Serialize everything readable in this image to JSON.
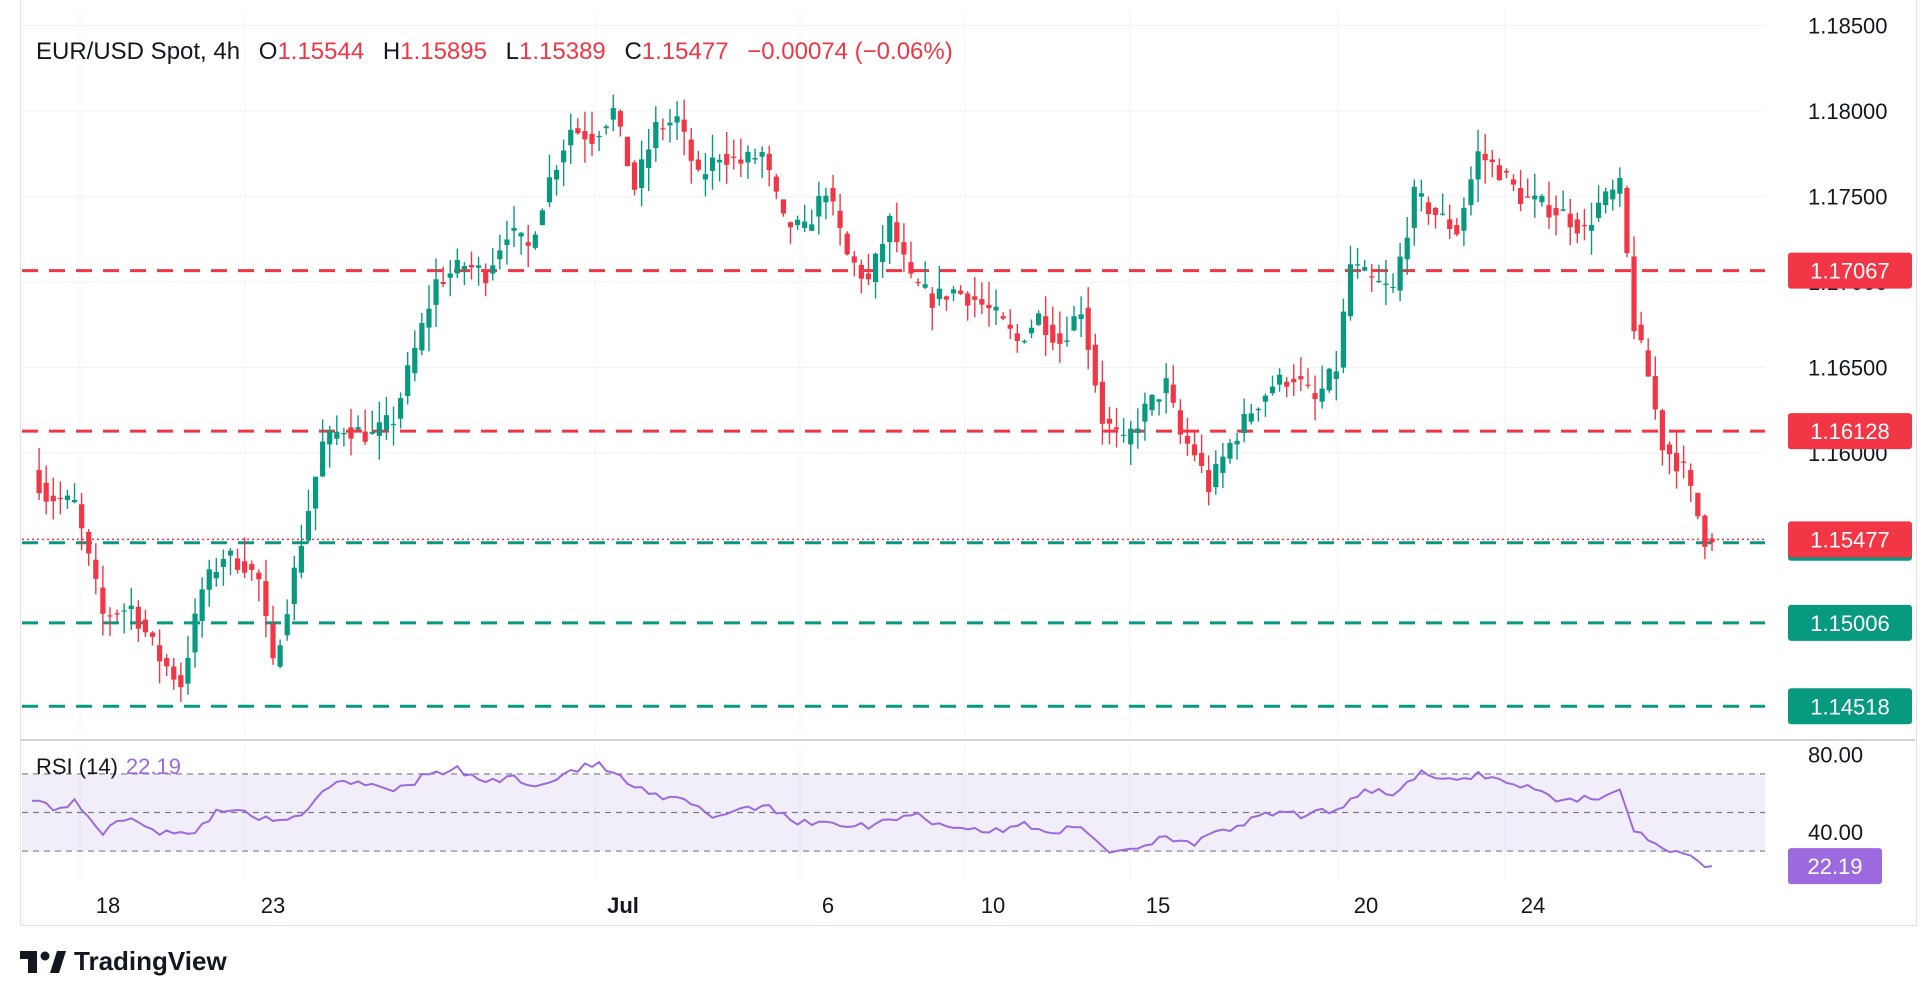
{
  "header": {
    "symbol": "EUR/USD Spot, 4h",
    "open_label": "O",
    "open": "1.15544",
    "high_label": "H",
    "high": "1.15895",
    "low_label": "L",
    "low": "1.15389",
    "close_label": "C",
    "close": "1.15477",
    "change": "−0.00074 (−0.06%)"
  },
  "rsi_legend": {
    "label": "RSI (14)",
    "value": "22.19"
  },
  "footer": {
    "brand": "TradingView",
    "logo_icon": "tradingview-logo-icon"
  },
  "colors": {
    "up": "#089981",
    "down": "#f23645",
    "rsi": "#9c6ade",
    "resistance": "#f23645",
    "support": "#089981"
  },
  "chart_data": [
    {
      "type": "candlestick",
      "x_tick_labels": [
        "18",
        "23",
        "Jul",
        "6",
        "10",
        "15",
        "20",
        "24"
      ],
      "y_tick_labels": [
        "1.18500",
        "1.18000",
        "1.17500",
        "1.17000",
        "1.16500",
        "1.16000"
      ],
      "ylim": [
        1.1435,
        1.1865
      ],
      "horizontal_levels": [
        {
          "value": 1.17067,
          "label": "1.17067",
          "kind": "resistance"
        },
        {
          "value": 1.16128,
          "label": "1.16128",
          "kind": "resistance"
        },
        {
          "value": 1.15475,
          "label": "1.15475",
          "kind": "support"
        },
        {
          "value": 1.15006,
          "label": "1.15006",
          "kind": "support"
        },
        {
          "value": 1.14518,
          "label": "1.14518",
          "kind": "support"
        }
      ],
      "last_price": {
        "value": 1.15477,
        "label": "1.15477"
      },
      "anchors": [
        {
          "i": 0,
          "p": 1.159
        },
        {
          "i": 2,
          "p": 1.1575
        },
        {
          "i": 6,
          "p": 1.157
        },
        {
          "i": 10,
          "p": 1.1505
        },
        {
          "i": 14,
          "p": 1.151
        },
        {
          "i": 18,
          "p": 1.148
        },
        {
          "i": 21,
          "p": 1.1465
        },
        {
          "i": 24,
          "p": 1.152
        },
        {
          "i": 27,
          "p": 1.154
        },
        {
          "i": 30,
          "p": 1.1535
        },
        {
          "i": 32,
          "p": 1.1525
        },
        {
          "i": 34,
          "p": 1.1475
        },
        {
          "i": 37,
          "p": 1.153
        },
        {
          "i": 41,
          "p": 1.1605
        },
        {
          "i": 44,
          "p": 1.1615
        },
        {
          "i": 48,
          "p": 1.161
        },
        {
          "i": 51,
          "p": 1.162
        },
        {
          "i": 54,
          "p": 1.166
        },
        {
          "i": 57,
          "p": 1.17
        },
        {
          "i": 61,
          "p": 1.171
        },
        {
          "i": 64,
          "p": 1.1705
        },
        {
          "i": 67,
          "p": 1.173
        },
        {
          "i": 70,
          "p": 1.172
        },
        {
          "i": 73,
          "p": 1.176
        },
        {
          "i": 76,
          "p": 1.179
        },
        {
          "i": 79,
          "p": 1.1785
        },
        {
          "i": 82,
          "p": 1.18
        },
        {
          "i": 85,
          "p": 1.1755
        },
        {
          "i": 88,
          "p": 1.179
        },
        {
          "i": 91,
          "p": 1.1795
        },
        {
          "i": 94,
          "p": 1.176
        },
        {
          "i": 97,
          "p": 1.1775
        },
        {
          "i": 100,
          "p": 1.177
        },
        {
          "i": 103,
          "p": 1.1775
        },
        {
          "i": 106,
          "p": 1.1735
        },
        {
          "i": 109,
          "p": 1.173
        },
        {
          "i": 112,
          "p": 1.1755
        },
        {
          "i": 115,
          "p": 1.1715
        },
        {
          "i": 118,
          "p": 1.17
        },
        {
          "i": 121,
          "p": 1.1735
        },
        {
          "i": 124,
          "p": 1.17
        },
        {
          "i": 127,
          "p": 1.169
        },
        {
          "i": 130,
          "p": 1.1695
        },
        {
          "i": 133,
          "p": 1.169
        },
        {
          "i": 136,
          "p": 1.168
        },
        {
          "i": 139,
          "p": 1.1665
        },
        {
          "i": 142,
          "p": 1.168
        },
        {
          "i": 145,
          "p": 1.1665
        },
        {
          "i": 148,
          "p": 1.1685
        },
        {
          "i": 151,
          "p": 1.162
        },
        {
          "i": 154,
          "p": 1.1605
        },
        {
          "i": 157,
          "p": 1.1625
        },
        {
          "i": 160,
          "p": 1.164
        },
        {
          "i": 162,
          "p": 1.161
        },
        {
          "i": 164,
          "p": 1.16
        },
        {
          "i": 166,
          "p": 1.158
        },
        {
          "i": 169,
          "p": 1.1605
        },
        {
          "i": 172,
          "p": 1.1625
        },
        {
          "i": 175,
          "p": 1.164
        },
        {
          "i": 178,
          "p": 1.1645
        },
        {
          "i": 181,
          "p": 1.163
        },
        {
          "i": 184,
          "p": 1.165
        },
        {
          "i": 186,
          "p": 1.171
        },
        {
          "i": 189,
          "p": 1.17
        },
        {
          "i": 192,
          "p": 1.1695
        },
        {
          "i": 195,
          "p": 1.175
        },
        {
          "i": 198,
          "p": 1.174
        },
        {
          "i": 201,
          "p": 1.173
        },
        {
          "i": 204,
          "p": 1.1775
        },
        {
          "i": 207,
          "p": 1.1765
        },
        {
          "i": 210,
          "p": 1.175
        },
        {
          "i": 213,
          "p": 1.1745
        },
        {
          "i": 216,
          "p": 1.174
        },
        {
          "i": 219,
          "p": 1.173
        },
        {
          "i": 221,
          "p": 1.1745
        },
        {
          "i": 224,
          "p": 1.1755
        },
        {
          "i": 226,
          "p": 1.1675
        },
        {
          "i": 228,
          "p": 1.1645
        },
        {
          "i": 230,
          "p": 1.1605
        },
        {
          "i": 233,
          "p": 1.159
        },
        {
          "i": 236,
          "p": 1.155
        },
        {
          "i": 237,
          "p": 1.15477
        }
      ],
      "x_range": [
        0,
        237
      ]
    },
    {
      "type": "line",
      "name": "RSI (14)",
      "ylim": [
        15,
        85
      ],
      "y_tick_labels": [
        "80.00",
        "40.00"
      ],
      "bands": [
        70,
        50,
        30
      ],
      "last_value": {
        "value": 22.19,
        "label": "22.19"
      },
      "anchors": [
        {
          "i": 0,
          "v": 58
        },
        {
          "i": 3,
          "v": 52
        },
        {
          "i": 6,
          "v": 55
        },
        {
          "i": 10,
          "v": 40
        },
        {
          "i": 14,
          "v": 48
        },
        {
          "i": 18,
          "v": 40
        },
        {
          "i": 22,
          "v": 38
        },
        {
          "i": 26,
          "v": 50
        },
        {
          "i": 30,
          "v": 52
        },
        {
          "i": 34,
          "v": 44
        },
        {
          "i": 38,
          "v": 48
        },
        {
          "i": 41,
          "v": 62
        },
        {
          "i": 44,
          "v": 67
        },
        {
          "i": 48,
          "v": 65
        },
        {
          "i": 52,
          "v": 62
        },
        {
          "i": 56,
          "v": 70
        },
        {
          "i": 60,
          "v": 72
        },
        {
          "i": 64,
          "v": 66
        },
        {
          "i": 68,
          "v": 68
        },
        {
          "i": 72,
          "v": 64
        },
        {
          "i": 76,
          "v": 72
        },
        {
          "i": 80,
          "v": 75
        },
        {
          "i": 84,
          "v": 65
        },
        {
          "i": 88,
          "v": 58
        },
        {
          "i": 92,
          "v": 56
        },
        {
          "i": 96,
          "v": 48
        },
        {
          "i": 100,
          "v": 52
        },
        {
          "i": 104,
          "v": 54
        },
        {
          "i": 108,
          "v": 44
        },
        {
          "i": 112,
          "v": 46
        },
        {
          "i": 116,
          "v": 42
        },
        {
          "i": 120,
          "v": 45
        },
        {
          "i": 124,
          "v": 50
        },
        {
          "i": 128,
          "v": 44
        },
        {
          "i": 132,
          "v": 42
        },
        {
          "i": 136,
          "v": 40
        },
        {
          "i": 140,
          "v": 44
        },
        {
          "i": 144,
          "v": 40
        },
        {
          "i": 148,
          "v": 42
        },
        {
          "i": 152,
          "v": 30
        },
        {
          "i": 156,
          "v": 32
        },
        {
          "i": 160,
          "v": 38
        },
        {
          "i": 164,
          "v": 34
        },
        {
          "i": 168,
          "v": 40
        },
        {
          "i": 172,
          "v": 46
        },
        {
          "i": 176,
          "v": 50
        },
        {
          "i": 180,
          "v": 48
        },
        {
          "i": 184,
          "v": 52
        },
        {
          "i": 188,
          "v": 62
        },
        {
          "i": 192,
          "v": 60
        },
        {
          "i": 196,
          "v": 70
        },
        {
          "i": 200,
          "v": 66
        },
        {
          "i": 204,
          "v": 70
        },
        {
          "i": 208,
          "v": 66
        },
        {
          "i": 212,
          "v": 62
        },
        {
          "i": 216,
          "v": 56
        },
        {
          "i": 220,
          "v": 58
        },
        {
          "i": 224,
          "v": 60
        },
        {
          "i": 226,
          "v": 42
        },
        {
          "i": 228,
          "v": 36
        },
        {
          "i": 231,
          "v": 30
        },
        {
          "i": 234,
          "v": 26
        },
        {
          "i": 237,
          "v": 22.19
        }
      ]
    }
  ]
}
